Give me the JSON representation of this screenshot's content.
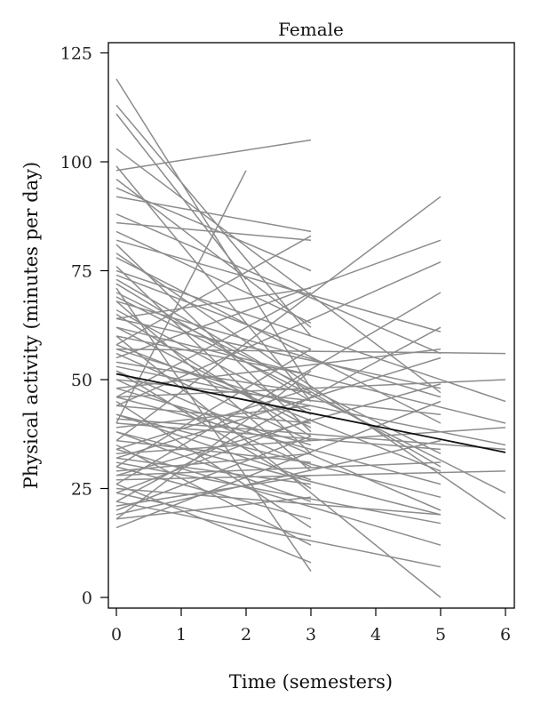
{
  "chart_data": {
    "type": "line",
    "title": "Female",
    "xlabel": "Time (semesters)",
    "ylabel": "Physical activity (minutes per day)",
    "xlim": [
      -0.15,
      6.0
    ],
    "ylim": [
      -3,
      125
    ],
    "x_ticks": [
      0,
      1,
      2,
      3,
      4,
      5,
      6
    ],
    "y_ticks": [
      0,
      25,
      50,
      75,
      100,
      125
    ],
    "grid": false,
    "colors": {
      "individual": "#8c8c8c",
      "mean": "#111111",
      "frame": "#000000"
    },
    "mean_trend": {
      "name": "",
      "x": [
        0,
        6
      ],
      "y": [
        51.3,
        33.3
      ]
    },
    "individual_trajectories": [
      {
        "x": [
          0,
          3
        ],
        "y": [
          119,
          48
        ]
      },
      {
        "x": [
          0,
          3
        ],
        "y": [
          113,
          60
        ]
      },
      {
        "x": [
          0,
          2
        ],
        "y": [
          111,
          73
        ]
      },
      {
        "x": [
          0,
          5
        ],
        "y": [
          103,
          47
        ]
      },
      {
        "x": [
          0,
          3
        ],
        "y": [
          99,
          45
        ]
      },
      {
        "x": [
          0,
          3
        ],
        "y": [
          96,
          62
        ]
      },
      {
        "x": [
          0,
          3
        ],
        "y": [
          92,
          84
        ]
      },
      {
        "x": [
          0,
          5
        ],
        "y": [
          88,
          56
        ]
      },
      {
        "x": [
          0,
          3
        ],
        "y": [
          84,
          63
        ]
      },
      {
        "x": [
          0,
          3
        ],
        "y": [
          81,
          38
        ]
      },
      {
        "x": [
          0,
          5
        ],
        "y": [
          78,
          40
        ]
      },
      {
        "x": [
          0,
          3
        ],
        "y": [
          76,
          33
        ]
      },
      {
        "x": [
          0,
          3
        ],
        "y": [
          74,
          57
        ]
      },
      {
        "x": [
          0,
          3
        ],
        "y": [
          72,
          45
        ]
      },
      {
        "x": [
          0,
          5
        ],
        "y": [
          70,
          33
        ]
      },
      {
        "x": [
          0,
          3
        ],
        "y": [
          68,
          29
        ]
      },
      {
        "x": [
          0,
          3
        ],
        "y": [
          66,
          42
        ]
      },
      {
        "x": [
          0,
          5
        ],
        "y": [
          64,
          48
        ]
      },
      {
        "x": [
          0,
          3
        ],
        "y": [
          62,
          39
        ]
      },
      {
        "x": [
          0,
          3
        ],
        "y": [
          60,
          51
        ]
      },
      {
        "x": [
          0,
          5
        ],
        "y": [
          58,
          29
        ]
      },
      {
        "x": [
          0,
          3
        ],
        "y": [
          56,
          36
        ]
      },
      {
        "x": [
          0,
          3
        ],
        "y": [
          54,
          47
        ]
      },
      {
        "x": [
          0,
          5
        ],
        "y": [
          52,
          20
        ]
      },
      {
        "x": [
          0,
          3
        ],
        "y": [
          50,
          30
        ]
      },
      {
        "x": [
          0,
          3
        ],
        "y": [
          48,
          35
        ]
      },
      {
        "x": [
          0,
          5
        ],
        "y": [
          46,
          26
        ]
      },
      {
        "x": [
          0,
          3
        ],
        "y": [
          44,
          40
        ]
      },
      {
        "x": [
          0,
          3
        ],
        "y": [
          42,
          27
        ]
      },
      {
        "x": [
          0,
          5
        ],
        "y": [
          40,
          34
        ]
      },
      {
        "x": [
          0,
          3
        ],
        "y": [
          38,
          22
        ]
      },
      {
        "x": [
          0,
          3
        ],
        "y": [
          36,
          31
        ]
      },
      {
        "x": [
          0,
          5
        ],
        "y": [
          34,
          12
        ]
      },
      {
        "x": [
          0,
          3
        ],
        "y": [
          32,
          26
        ]
      },
      {
        "x": [
          0,
          3
        ],
        "y": [
          30,
          18
        ]
      },
      {
        "x": [
          0,
          5
        ],
        "y": [
          28,
          31
        ]
      },
      {
        "x": [
          0,
          3
        ],
        "y": [
          26,
          8
        ]
      },
      {
        "x": [
          0,
          3
        ],
        "y": [
          24,
          14
        ]
      },
      {
        "x": [
          0,
          5
        ],
        "y": [
          22,
          7
        ]
      },
      {
        "x": [
          0,
          3
        ],
        "y": [
          20,
          37
        ]
      },
      {
        "x": [
          0,
          3
        ],
        "y": [
          18,
          23
        ]
      },
      {
        "x": [
          0,
          5
        ],
        "y": [
          16,
          45
        ]
      },
      {
        "x": [
          0,
          3
        ],
        "y": [
          98,
          105
        ]
      },
      {
        "x": [
          0,
          2
        ],
        "y": [
          40,
          98
        ]
      },
      {
        "x": [
          0,
          3
        ],
        "y": [
          86,
          82
        ]
      },
      {
        "x": [
          0,
          3
        ],
        "y": [
          58,
          83
        ]
      },
      {
        "x": [
          0,
          5
        ],
        "y": [
          36,
          92
        ]
      },
      {
        "x": [
          0,
          3
        ],
        "y": [
          30,
          57
        ]
      },
      {
        "x": [
          0,
          5
        ],
        "y": [
          44,
          77
        ]
      },
      {
        "x": [
          0,
          5
        ],
        "y": [
          26,
          70
        ]
      },
      {
        "x": [
          0,
          5
        ],
        "y": [
          22,
          62
        ]
      },
      {
        "x": [
          0,
          3
        ],
        "y": [
          18,
          52
        ]
      },
      {
        "x": [
          0,
          5
        ],
        "y": [
          32,
          55
        ]
      },
      {
        "x": [
          0,
          3
        ],
        "y": [
          46,
          70
        ]
      },
      {
        "x": [
          0,
          5
        ],
        "y": [
          55,
          82
        ]
      },
      {
        "x": [
          0,
          5
        ],
        "y": [
          28,
          49
        ]
      },
      {
        "x": [
          0,
          3
        ],
        "y": [
          34,
          48
        ]
      },
      {
        "x": [
          0,
          3
        ],
        "y": [
          64,
          71
        ]
      },
      {
        "x": [
          0,
          5
        ],
        "y": [
          48,
          57
        ]
      },
      {
        "x": [
          0,
          3
        ],
        "y": [
          24,
          41
        ]
      },
      {
        "x": [
          0,
          6
        ],
        "y": [
          57,
          56
        ]
      },
      {
        "x": [
          0,
          6
        ],
        "y": [
          62,
          40
        ]
      },
      {
        "x": [
          0,
          6
        ],
        "y": [
          75,
          45
        ]
      },
      {
        "x": [
          0,
          6
        ],
        "y": [
          69,
          24
        ]
      },
      {
        "x": [
          0,
          6
        ],
        "y": [
          79,
          18
        ]
      },
      {
        "x": [
          0,
          6
        ],
        "y": [
          46,
          50
        ]
      },
      {
        "x": [
          0,
          6
        ],
        "y": [
          41,
          34
        ]
      },
      {
        "x": [
          0,
          6
        ],
        "y": [
          33,
          39
        ]
      },
      {
        "x": [
          0,
          6
        ],
        "y": [
          27,
          29
        ]
      },
      {
        "x": [
          0,
          6
        ],
        "y": [
          53,
          35
        ]
      },
      {
        "x": [
          0,
          5
        ],
        "y": [
          60,
          0
        ]
      },
      {
        "x": [
          0,
          3
        ],
        "y": [
          71,
          6
        ]
      },
      {
        "x": [
          0,
          5
        ],
        "y": [
          82,
          61
        ]
      },
      {
        "x": [
          0,
          3
        ],
        "y": [
          94,
          75
        ]
      },
      {
        "x": [
          0,
          5
        ],
        "y": [
          68,
          46
        ]
      },
      {
        "x": [
          0,
          3
        ],
        "y": [
          45,
          16
        ]
      },
      {
        "x": [
          0,
          5
        ],
        "y": [
          38,
          19
        ]
      },
      {
        "x": [
          0,
          3
        ],
        "y": [
          52,
          25
        ]
      },
      {
        "x": [
          0,
          5
        ],
        "y": [
          31,
          17
        ]
      },
      {
        "x": [
          0,
          3
        ],
        "y": [
          29,
          33
        ]
      },
      {
        "x": [
          0,
          5
        ],
        "y": [
          42,
          23
        ]
      },
      {
        "x": [
          0,
          3
        ],
        "y": [
          21,
          28
        ]
      },
      {
        "x": [
          0,
          5
        ],
        "y": [
          19,
          36
        ]
      },
      {
        "x": [
          0,
          3
        ],
        "y": [
          65,
          37
        ]
      },
      {
        "x": [
          0,
          5
        ],
        "y": [
          50,
          42
        ]
      },
      {
        "x": [
          0,
          3
        ],
        "y": [
          57,
          43
        ]
      },
      {
        "x": [
          0,
          5
        ],
        "y": [
          73,
          30
        ]
      },
      {
        "x": [
          0,
          3
        ],
        "y": [
          39,
          44
        ]
      },
      {
        "x": [
          0,
          5
        ],
        "y": [
          25,
          19
        ]
      },
      {
        "x": [
          0,
          3
        ],
        "y": [
          35,
          12
        ]
      }
    ]
  }
}
